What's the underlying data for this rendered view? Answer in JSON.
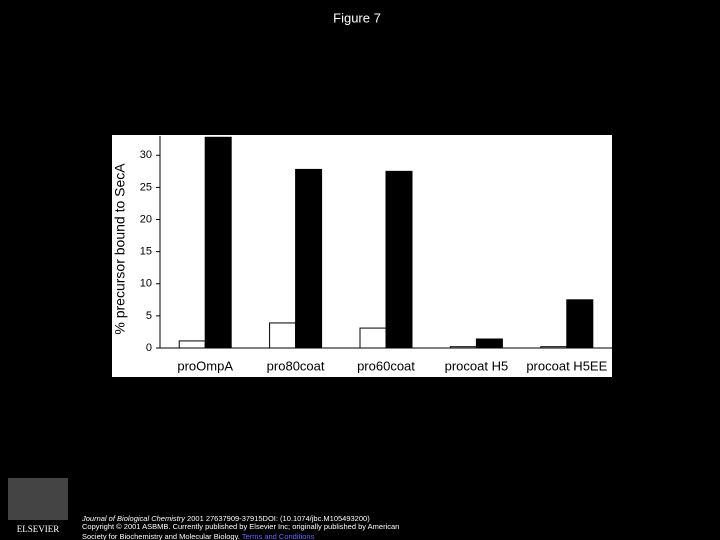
{
  "slide_title": "Figure 7",
  "chart_data": {
    "type": "bar",
    "ylabel": "% precursor bound to SecA",
    "categories": [
      "proOmpA",
      "pro80coat",
      "pro60coat",
      "procoat H5",
      "procoat H5EE"
    ],
    "series": [
      {
        "color": "#ffffff",
        "values": [
          1.1,
          3.9,
          3.1,
          0.2,
          0.2
        ]
      },
      {
        "color": "#000000",
        "values": [
          32.8,
          27.8,
          27.5,
          1.4,
          7.5
        ]
      }
    ],
    "ylim": [
      0,
      33
    ],
    "yticks": [
      0,
      5,
      10,
      15,
      20,
      25,
      30
    ],
    "grid": false
  },
  "footer": {
    "journal": "Journal of Biological Chemistry",
    "citation": " 2001 27637909-37915DOI: (10.1074/jbc.M105493200)",
    "copyright": "Copyright © 2001 ASBMB. Currently published by Elsevier Inc; originally published by American",
    "copyright_cont": "Society for Biochemistry and Molecular Biology.",
    "link": "Terms and Conditions",
    "logo": "ELSEVIER"
  }
}
